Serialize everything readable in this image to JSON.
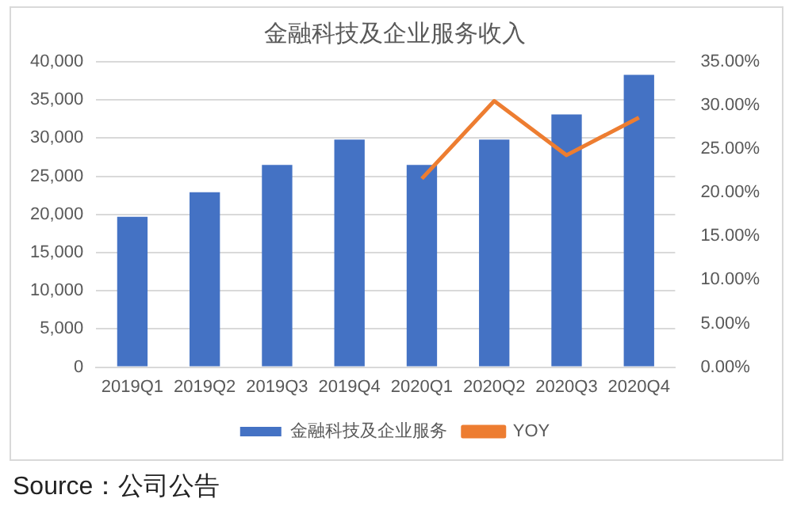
{
  "chart_data": {
    "type": "bar",
    "title": "金融科技及企业服务收入",
    "categories": [
      "2019Q1",
      "2019Q2",
      "2019Q3",
      "2019Q4",
      "2020Q1",
      "2020Q2",
      "2020Q3",
      "2020Q4"
    ],
    "series": [
      {
        "name": "金融科技及企业服务",
        "color": "#4472c4",
        "values": [
          19700,
          22900,
          26500,
          29800,
          26500,
          29800,
          33100,
          38300
        ]
      },
      {
        "name": "YOY",
        "type": "line",
        "axis": "y2",
        "color": "#ed7d31",
        "values": [
          null,
          null,
          null,
          null,
          21.6,
          30.5,
          24.3,
          28.6
        ]
      }
    ],
    "ylim": [
      0,
      40000
    ],
    "yticks": [
      {
        "value": 0,
        "label": "0"
      },
      {
        "value": 5000,
        "label": "5,000"
      },
      {
        "value": 10000,
        "label": "10,000"
      },
      {
        "value": 15000,
        "label": "15,000"
      },
      {
        "value": 20000,
        "label": "20,000"
      },
      {
        "value": 25000,
        "label": "25,000"
      },
      {
        "value": 30000,
        "label": "30,000"
      },
      {
        "value": 35000,
        "label": "35,000"
      },
      {
        "value": 40000,
        "label": "40,000"
      }
    ],
    "y2lim": [
      0,
      35
    ],
    "y2ticks": [
      {
        "value": 0,
        "label": "0.00%"
      },
      {
        "value": 5,
        "label": "5.00%"
      },
      {
        "value": 10,
        "label": "10.00%"
      },
      {
        "value": 15,
        "label": "15.00%"
      },
      {
        "value": 20,
        "label": "20.00%"
      },
      {
        "value": 25,
        "label": "25.00%"
      },
      {
        "value": 30,
        "label": "30.00%"
      },
      {
        "value": 35,
        "label": "35.00%"
      }
    ],
    "grid": "y",
    "legend": "bottom",
    "marker": "none",
    "annotations": [
      "Source：公司公告"
    ]
  }
}
